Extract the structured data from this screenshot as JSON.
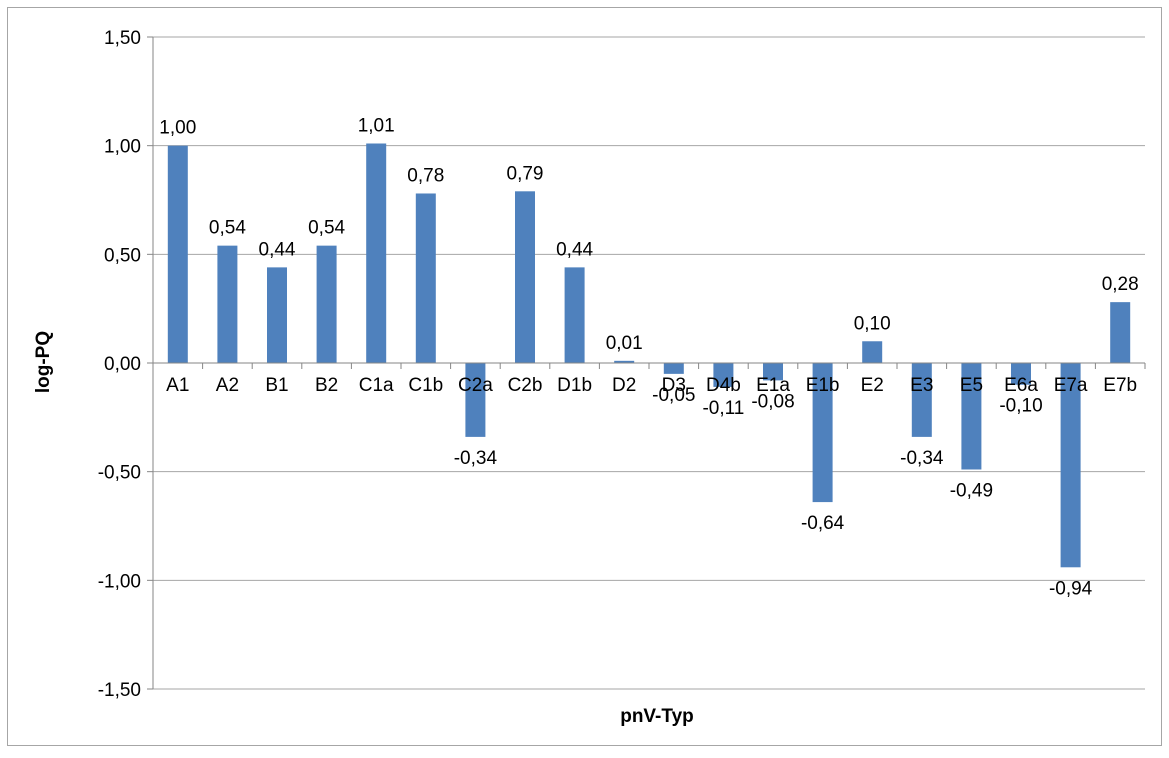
{
  "chart_data": {
    "type": "bar",
    "title": "",
    "xlabel": "pnV-Typ",
    "ylabel": "log-PQ",
    "ylim": [
      -1.5,
      1.5
    ],
    "yticks": [
      "1,50",
      "1,00",
      "0,50",
      "0,00",
      "-0,50",
      "-1,00",
      "-1,50"
    ],
    "ytick_values": [
      1.5,
      1.0,
      0.5,
      0.0,
      -0.5,
      -1.0,
      -1.5
    ],
    "grid": true,
    "legend": "none",
    "bar_color": "#4f81bd",
    "categories": [
      "A1",
      "A2",
      "B1",
      "B2",
      "C1a",
      "C1b",
      "C2a",
      "C2b",
      "D1b",
      "D2",
      "D3",
      "D4b",
      "E1a",
      "E1b",
      "E2",
      "E3",
      "E5",
      "E6a",
      "E7a",
      "E7b"
    ],
    "values": [
      1.0,
      0.54,
      0.44,
      0.54,
      1.01,
      0.78,
      -0.34,
      0.79,
      0.44,
      0.01,
      -0.05,
      -0.11,
      -0.08,
      -0.64,
      0.1,
      -0.34,
      -0.49,
      -0.1,
      -0.94,
      0.28
    ],
    "data_labels": [
      "1,00",
      "0,54",
      "0,44",
      "0,54",
      "1,01",
      "0,78",
      "-0,34",
      "0,79",
      "0,44",
      "0,01",
      "-0,05",
      "-0,11",
      "-0,08",
      "-0,64",
      "0,10",
      "-0,34",
      "-0,49",
      "-0,10",
      "-0,94",
      "0,28"
    ]
  }
}
